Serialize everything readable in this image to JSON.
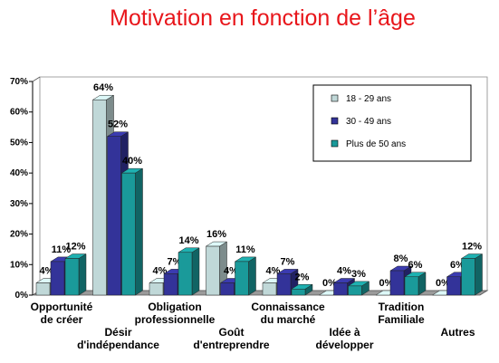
{
  "chart_data": {
    "type": "bar",
    "title": "Motivation en fonction de l’âge",
    "xlabel": "",
    "ylabel": "",
    "ylim": [
      0,
      70
    ],
    "yticks": [
      "0%",
      "10%",
      "20%",
      "30%",
      "40%",
      "50%",
      "60%",
      "70%"
    ],
    "grid": false,
    "legend_position": "top-right",
    "categories": [
      [
        "Opportunité",
        "de créer"
      ],
      [
        "Désir",
        "d'indépendance"
      ],
      [
        "Obligation",
        "professionnelle"
      ],
      [
        "Goût",
        "d'entreprendre"
      ],
      [
        "Connaissance",
        "du marché"
      ],
      [
        "Idée à",
        "développer"
      ],
      [
        "Tradition",
        "Familiale"
      ],
      [
        "Autres"
      ]
    ],
    "series": [
      {
        "name": "18 - 29 ans",
        "color": "#c0d8d8",
        "values": [
          4,
          64,
          4,
          16,
          4,
          0,
          0,
          0
        ]
      },
      {
        "name": "30 - 49 ans",
        "color": "#333399",
        "values": [
          11,
          52,
          7,
          4,
          7,
          4,
          8,
          6
        ]
      },
      {
        "name": "Plus de 50 ans",
        "color": "#1a9a9a",
        "values": [
          12,
          40,
          14,
          11,
          2,
          3,
          6,
          12
        ]
      }
    ],
    "value_suffix": "%"
  }
}
